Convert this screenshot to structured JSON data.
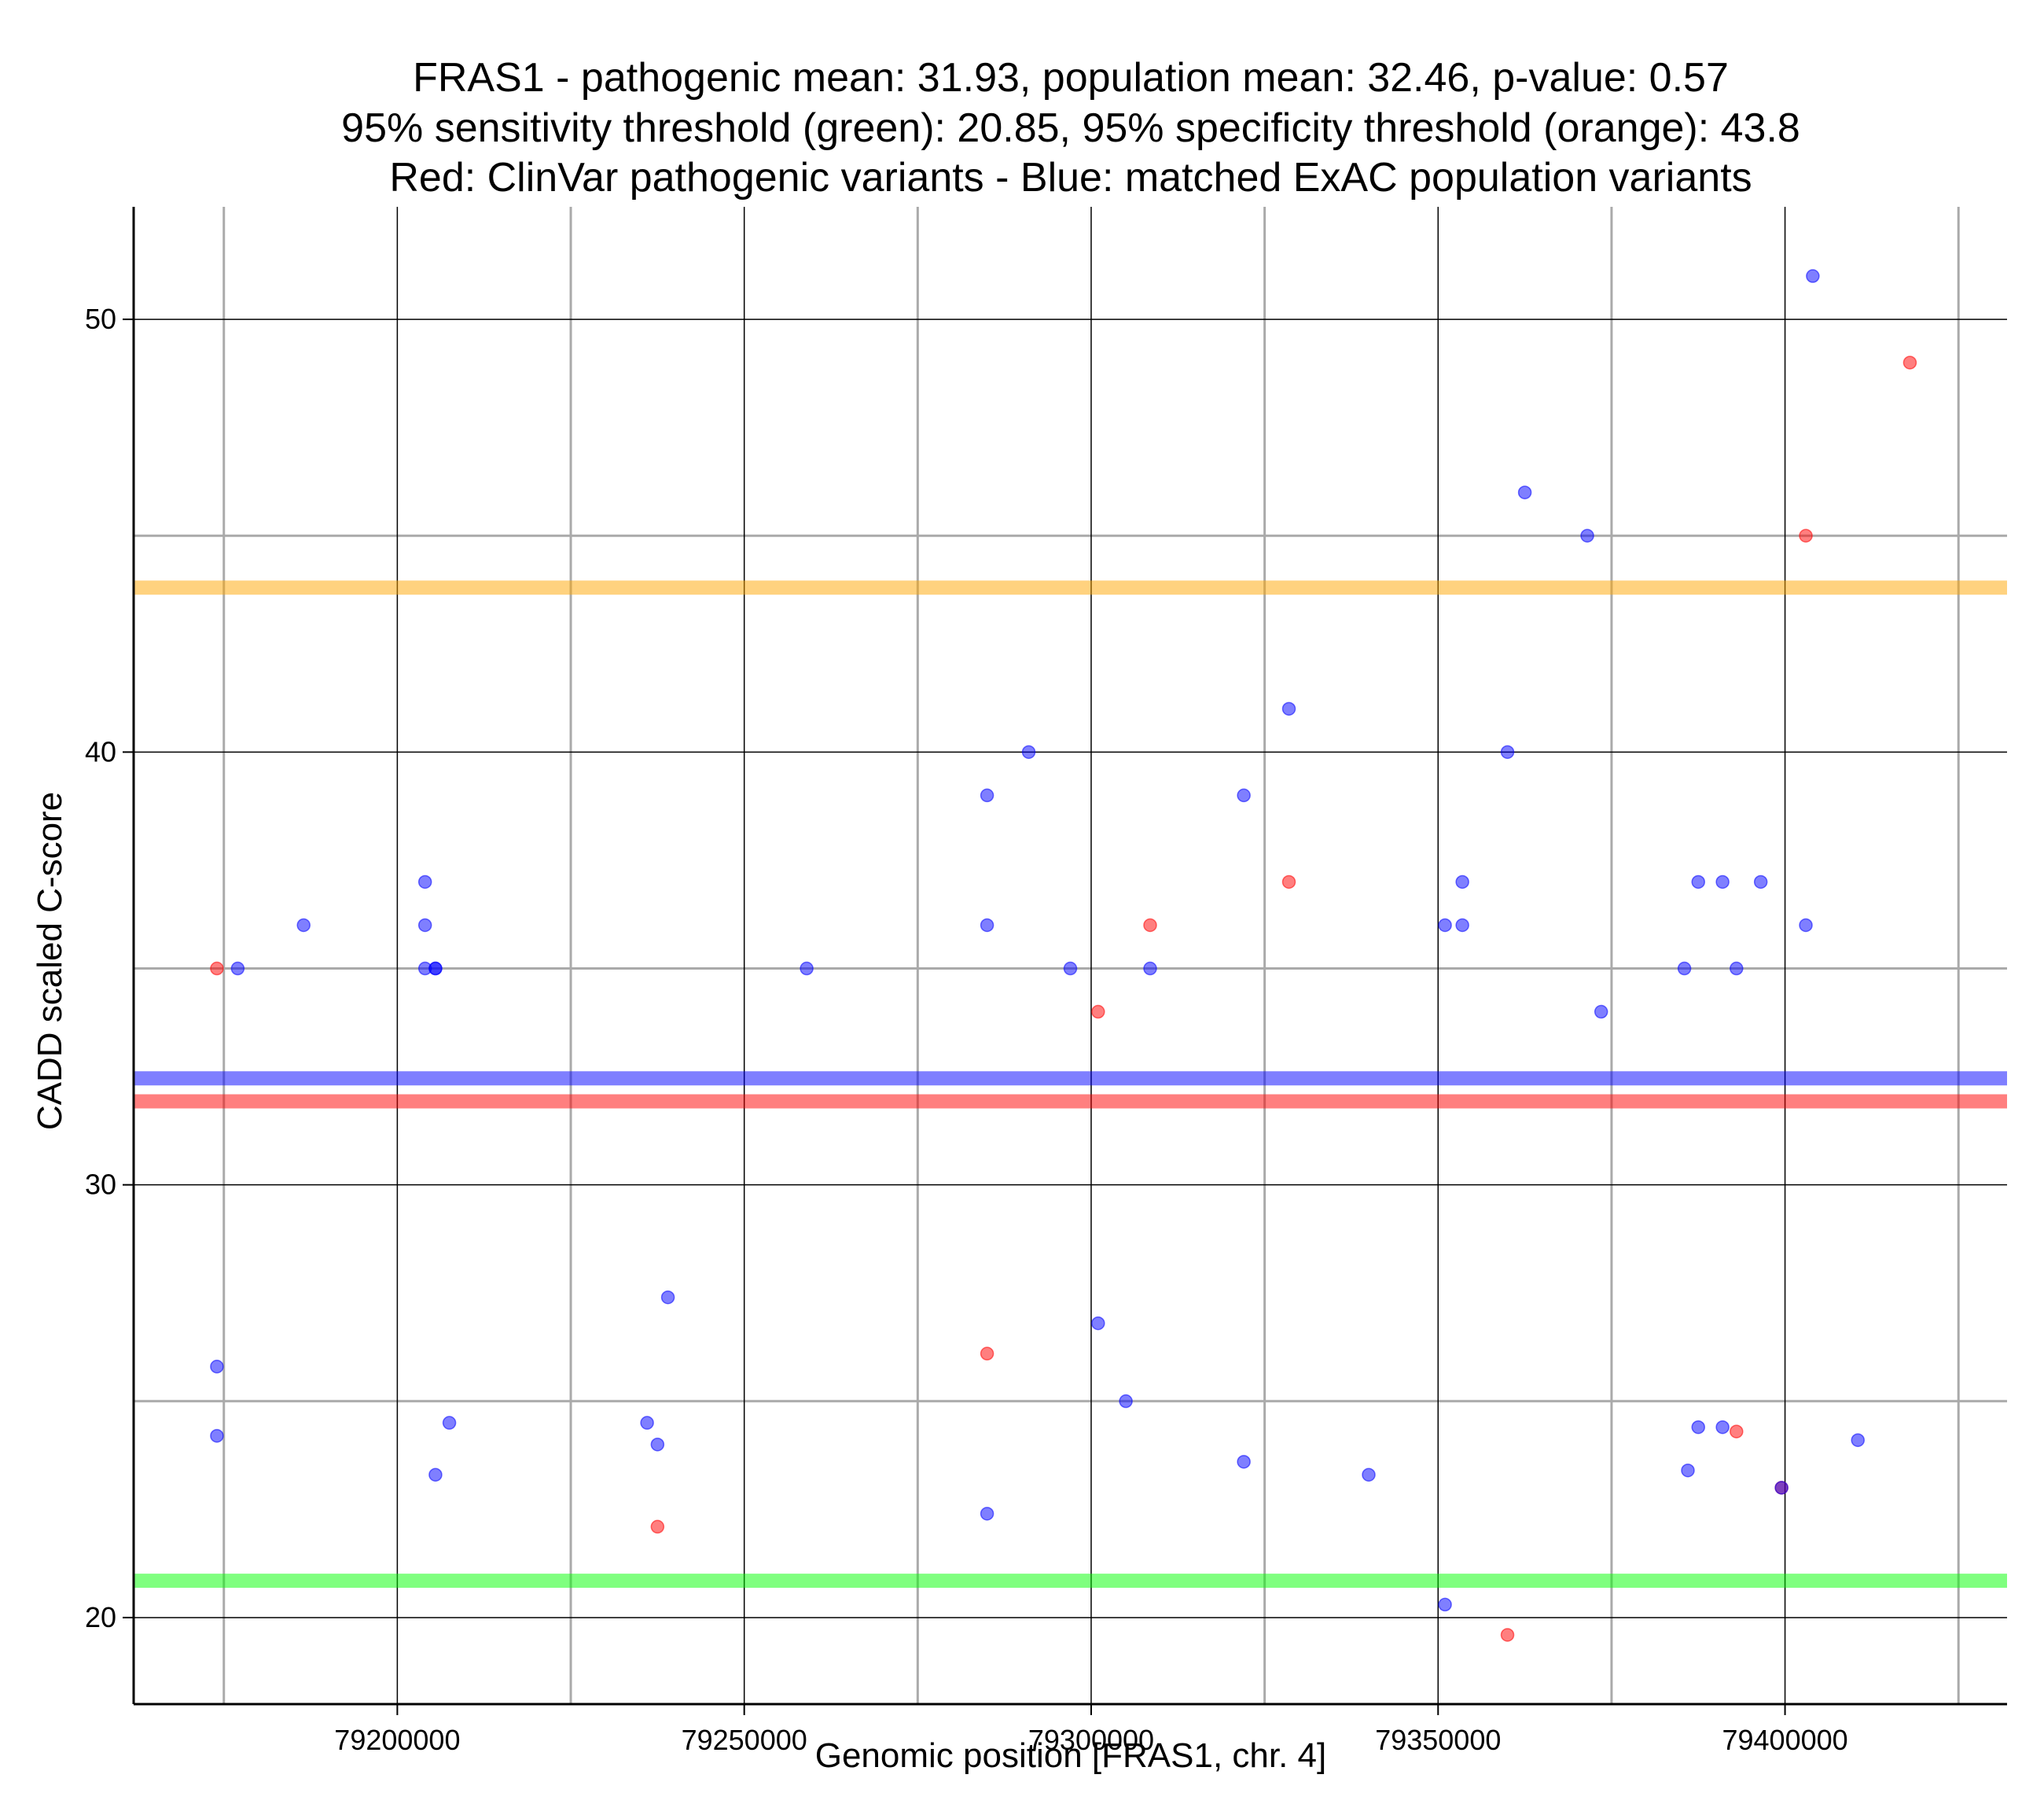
{
  "chart_data": {
    "type": "scatter",
    "title_lines": [
      "FRAS1 - pathogenic mean: 31.93, population mean: 32.46, p-value: 0.57",
      "95% sensitivity threshold (green): 20.85, 95% specificity threshold (orange): 43.8",
      "Red: ClinVar pathogenic variants - Blue: matched ExAC population variants"
    ],
    "xlabel": "Genomic position [FRAS1, chr. 4]",
    "ylabel": "CADD scaled C-score",
    "xlim": [
      79162000,
      79432000
    ],
    "ylim": [
      18,
      52.6
    ],
    "x_major_ticks": [
      79200000,
      79250000,
      79300000,
      79350000,
      79400000
    ],
    "x_tick_labels": [
      "79200000",
      "79250000",
      "79300000",
      "79350000",
      "79400000"
    ],
    "x_minor_ticks": [
      79175000,
      79225000,
      79275000,
      79325000,
      79375000,
      79425000
    ],
    "y_major_ticks": [
      20,
      30,
      40,
      50
    ],
    "y_tick_labels": [
      "20",
      "30",
      "40",
      "50"
    ],
    "y_minor_ticks": [
      25,
      35,
      45
    ],
    "grid": true,
    "colors": {
      "pathogenic": "#ff0000",
      "population": "#0000ff",
      "sensitivity": "#00ff00",
      "specificity": "#ffa500",
      "grid_major": "#000000",
      "grid_minor": "#aaaaaa"
    },
    "hlines": [
      {
        "name": "specificity-threshold",
        "y": 43.8,
        "color": "#ffa500"
      },
      {
        "name": "population-mean",
        "y": 32.46,
        "color": "#0000ff"
      },
      {
        "name": "pathogenic-mean",
        "y": 31.93,
        "color": "#ff0000"
      },
      {
        "name": "sensitivity-threshold",
        "y": 20.85,
        "color": "#00ff00"
      }
    ],
    "series": [
      {
        "name": "ClinVar pathogenic variants",
        "color": "#ff0000",
        "points": [
          [
            79174000,
            35
          ],
          [
            79237500,
            22.1
          ],
          [
            79285000,
            26.1
          ],
          [
            79301000,
            34
          ],
          [
            79308500,
            36
          ],
          [
            79328500,
            37
          ],
          [
            79360000,
            19.6
          ],
          [
            79393000,
            24.3
          ],
          [
            79399500,
            23
          ],
          [
            79403000,
            45
          ],
          [
            79418000,
            49
          ]
        ]
      },
      {
        "name": "matched ExAC population variants",
        "color": "#0000ff",
        "points": [
          [
            79174000,
            25.8
          ],
          [
            79174000,
            24.2
          ],
          [
            79177000,
            35
          ],
          [
            79186500,
            36
          ],
          [
            79204000,
            37
          ],
          [
            79204000,
            36
          ],
          [
            79204000,
            35
          ],
          [
            79205500,
            35
          ],
          [
            79205500,
            35
          ],
          [
            79205500,
            23.3
          ],
          [
            79207500,
            24.5
          ],
          [
            79236000,
            24.5
          ],
          [
            79237500,
            24
          ],
          [
            79239000,
            27.4
          ],
          [
            79259000,
            35
          ],
          [
            79285000,
            39
          ],
          [
            79285000,
            36
          ],
          [
            79285000,
            22.4
          ],
          [
            79291000,
            40
          ],
          [
            79297000,
            35
          ],
          [
            79301000,
            26.8
          ],
          [
            79305000,
            25
          ],
          [
            79308500,
            35
          ],
          [
            79322000,
            39
          ],
          [
            79322000,
            23.6
          ],
          [
            79328500,
            41
          ],
          [
            79340000,
            23.3
          ],
          [
            79351000,
            36
          ],
          [
            79351000,
            20.3
          ],
          [
            79353500,
            37
          ],
          [
            79353500,
            36
          ],
          [
            79360000,
            40
          ],
          [
            79362500,
            46
          ],
          [
            79371500,
            45
          ],
          [
            79373500,
            34
          ],
          [
            79385500,
            35
          ],
          [
            79386000,
            23.4
          ],
          [
            79387500,
            37
          ],
          [
            79387500,
            24.4
          ],
          [
            79391000,
            37
          ],
          [
            79391000,
            24.4
          ],
          [
            79393000,
            35
          ],
          [
            79396500,
            37
          ],
          [
            79399500,
            23
          ],
          [
            79403000,
            36
          ],
          [
            79404000,
            51
          ],
          [
            79410500,
            24.1
          ]
        ]
      }
    ]
  }
}
